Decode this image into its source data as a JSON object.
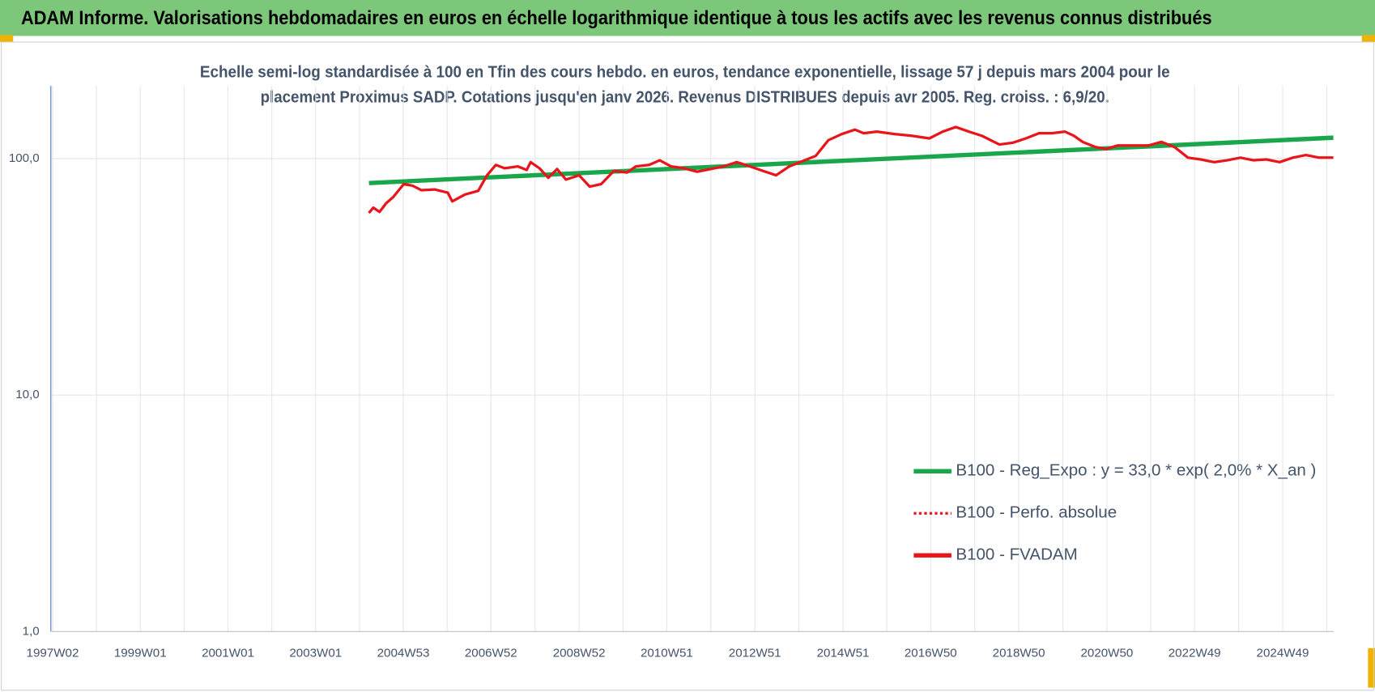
{
  "chart_data": {
    "type": "line",
    "title": "ADAM Informe. Valorisations hebdomadaires en euros en échelle logarithmique identique à tous les actifs avec les revenus connus distribués",
    "subtitle": [
      "Echelle semi-log standardisée à 100 en Tfin des cours hebdo. en euros, tendance exponentielle, lissage 57 j depuis mars 2004 pour le",
      "placement Proximus SADP. Cotations jusqu'en janv 2026. Revenus DISTRIBUES depuis avr 2005. Reg. croiss. : 6,9/20."
    ],
    "log_scale": true,
    "grid": true,
    "legend": "right",
    "xlim": [
      1997.0,
      2026.1
    ],
    "xticks": [
      {
        "value": 1997.02,
        "label": "1997W02"
      },
      {
        "value": 1999.01,
        "label": "1999W01"
      },
      {
        "value": 2001.0,
        "label": "2001W01"
      },
      {
        "value": 2002.99,
        "label": "2003W01"
      },
      {
        "value": 2004.98,
        "label": "2004W53"
      },
      {
        "value": 2006.97,
        "label": "2006W52"
      },
      {
        "value": 2008.97,
        "label": "2008W52"
      },
      {
        "value": 2010.96,
        "label": "2010W51"
      },
      {
        "value": 2012.96,
        "label": "2012W51"
      },
      {
        "value": 2014.96,
        "label": "2014W51"
      },
      {
        "value": 2016.95,
        "label": "2016W50"
      },
      {
        "value": 2018.95,
        "label": "2018W50"
      },
      {
        "value": 2020.95,
        "label": "2020W50"
      },
      {
        "value": 2022.94,
        "label": "2022W49"
      },
      {
        "value": 2024.94,
        "label": "2024W49"
      }
    ],
    "ylim": [
      1,
      203
    ],
    "yticks": [
      {
        "value": 1,
        "label": "1,0"
      },
      {
        "value": 10,
        "label": "10,0"
      },
      {
        "value": 100,
        "label": "100,0"
      }
    ],
    "series": [
      {
        "name": "B100 - Reg_Expo : y = 33,0 * exp( 2,0% *  X_an )",
        "color": "#1aa64a",
        "dash": "solid",
        "x": [
          2004.2,
          2026.09
        ],
        "values": [
          78.8,
          122.5
        ]
      },
      {
        "name": "B100 - Perfo. absolue",
        "color": "#e8161b",
        "dash": "dotted",
        "x": [],
        "values": []
      },
      {
        "name": "B100 - FVADAM",
        "color": "#e8161b",
        "dash": "solid",
        "x": [
          2004.2,
          2004.3,
          2004.44,
          2004.59,
          2004.75,
          2004.99,
          2005.19,
          2005.39,
          2005.69,
          2005.99,
          2006.09,
          2006.38,
          2006.68,
          2006.88,
          2007.08,
          2007.28,
          2007.58,
          2007.78,
          2007.87,
          2008.07,
          2008.27,
          2008.47,
          2008.67,
          2008.97,
          2009.21,
          2009.47,
          2009.76,
          2010.06,
          2010.26,
          2010.56,
          2010.8,
          2011.06,
          2011.35,
          2011.65,
          2011.95,
          2012.25,
          2012.55,
          2012.85,
          2013.14,
          2013.44,
          2013.74,
          2014.04,
          2014.34,
          2014.63,
          2014.93,
          2015.23,
          2015.43,
          2015.73,
          2016.13,
          2016.52,
          2016.92,
          2017.22,
          2017.52,
          2017.82,
          2018.11,
          2018.51,
          2018.81,
          2019.11,
          2019.41,
          2019.7,
          2020.0,
          2020.2,
          2020.4,
          2020.7,
          2020.94,
          2021.19,
          2021.49,
          2021.89,
          2022.19,
          2022.49,
          2022.79,
          2023.08,
          2023.38,
          2023.68,
          2023.98,
          2024.28,
          2024.57,
          2024.87,
          2025.17,
          2025.47,
          2025.77,
          2026.09
        ],
        "values": [
          58.9,
          62,
          59.5,
          64.7,
          68.7,
          78,
          76.8,
          73.5,
          74,
          71.7,
          65.9,
          70.5,
          73,
          85,
          94,
          91,
          92.6,
          89.5,
          96.6,
          91,
          82.9,
          90.3,
          81.5,
          85,
          76.1,
          78,
          88.7,
          87.3,
          92.6,
          94,
          98.3,
          92.6,
          91,
          88,
          90.3,
          92.6,
          96.6,
          92.6,
          88.7,
          85,
          92.6,
          97.5,
          102.6,
          119.6,
          126.9,
          132.5,
          128,
          130,
          127,
          124.8,
          121.7,
          130,
          136,
          130,
          124.8,
          114.6,
          116.6,
          121.7,
          128,
          128,
          130,
          124.8,
          117.6,
          111.7,
          109.8,
          113.6,
          113.6,
          113.6,
          117.6,
          111.7,
          100.9,
          99.2,
          96.6,
          98.3,
          100.9,
          98.3,
          99.2,
          96.6,
          100.9,
          103.5,
          100.9,
          100.9
        ]
      }
    ]
  }
}
